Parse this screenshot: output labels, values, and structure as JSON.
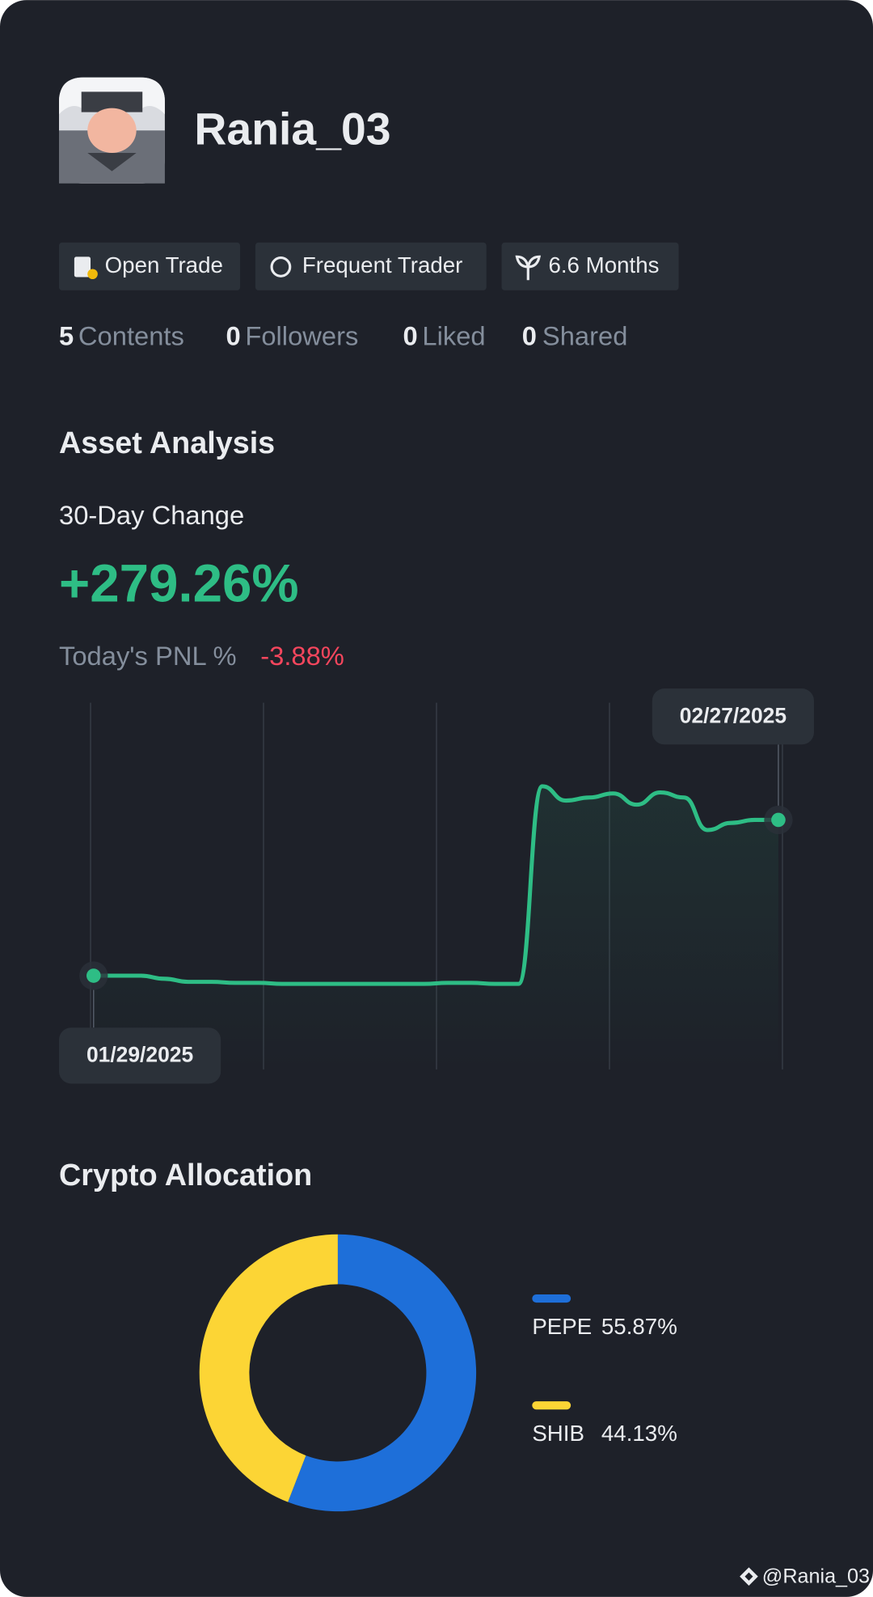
{
  "profile": {
    "username": "Rania_03",
    "badges": [
      "Open Trade",
      "Frequent Trader",
      "6.6 Months"
    ],
    "stats": [
      {
        "count": 5,
        "label": "Contents"
      },
      {
        "count": 0,
        "label": "Followers"
      },
      {
        "count": 0,
        "label": "Liked"
      },
      {
        "count": 0,
        "label": "Shared"
      }
    ]
  },
  "asset_analysis": {
    "title": "Asset Analysis",
    "change_label": "30-Day Change",
    "change_value": "+279.26%",
    "pnl_label": "Today's PNL %",
    "pnl_value": "-3.88%"
  },
  "chart_data": [
    {
      "type": "line",
      "categories": [
        "01/29/2025",
        null,
        null,
        null,
        null,
        null,
        null,
        null,
        null,
        null,
        null,
        null,
        null,
        null,
        null,
        null,
        null,
        null,
        null,
        null,
        null,
        null,
        null,
        null,
        null,
        null,
        null,
        null,
        null,
        "02/27/2025"
      ],
      "color": "#2ebd85",
      "values": [
        0,
        0,
        0,
        -5.5,
        -11,
        -11,
        -12.8,
        -12.8,
        -14.6,
        -14.6,
        -14.6,
        -14.6,
        -14.6,
        -14.6,
        -14.6,
        -12.8,
        -12.8,
        -14.6,
        -14.6,
        339.5,
        313.9,
        319.4,
        326.7,
        306.6,
        328.5,
        319.4,
        261,
        273.8,
        279.26,
        279.26
      ]
    },
    {
      "type": "pie",
      "title": "Crypto Allocation",
      "categories": [
        "PEPE",
        "SHIB"
      ],
      "values": [
        55.87,
        44.13
      ],
      "value_labels": [
        "55.87%",
        "44.13%"
      ],
      "colors": [
        "#1e6fd9",
        "#fcd535"
      ]
    }
  ],
  "watermark": "@Rania_03"
}
